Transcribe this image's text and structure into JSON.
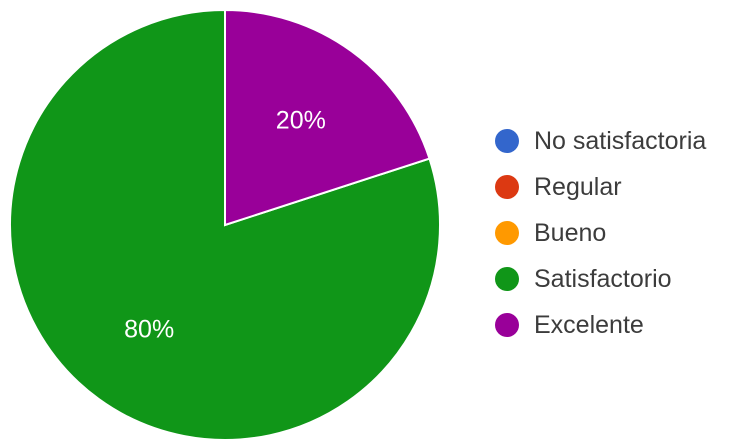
{
  "chart_data": {
    "type": "pie",
    "categories": [
      "No satisfactoria",
      "Regular",
      "Bueno",
      "Satisfactorio",
      "Excelente"
    ],
    "values": [
      0,
      0,
      0,
      80,
      20
    ],
    "value_labels": [
      "",
      "",
      "",
      "80%",
      "20%"
    ],
    "colors": [
      "#3366cc",
      "#dc3912",
      "#ff9900",
      "#109618",
      "#990099"
    ],
    "title": "",
    "legend_position": "right",
    "start_angle": "top, clockwise"
  }
}
